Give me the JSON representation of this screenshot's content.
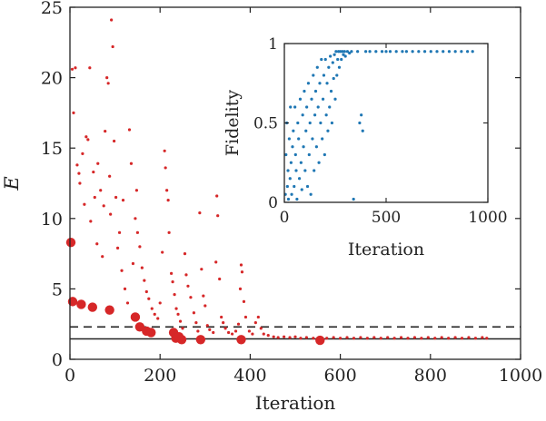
{
  "chart_data": [
    {
      "id": "main",
      "type": "scatter",
      "xlabel": "Iteration",
      "ylabel": "E",
      "xlim": [
        0,
        1000
      ],
      "ylim": [
        0,
        25
      ],
      "xticks": [
        0,
        200,
        400,
        600,
        800,
        1000
      ],
      "yticks": [
        0,
        5,
        10,
        15,
        20,
        25
      ],
      "grid": false,
      "colors": {
        "points": "#d62728",
        "frame": "#222222"
      },
      "reference_lines": [
        {
          "style": "dashed",
          "y": 2.3
        },
        {
          "style": "solid",
          "y": 1.45
        }
      ],
      "series": [
        {
          "marker": "small",
          "points": [
            [
              5,
              20.6
            ],
            [
              8,
              17.5
            ],
            [
              12,
              20.7
            ],
            [
              16,
              13.8
            ],
            [
              20,
              13.2
            ],
            [
              22,
              12.5
            ],
            [
              28,
              14.6
            ],
            [
              32,
              11.0
            ],
            [
              36,
              15.8
            ],
            [
              40,
              15.6
            ],
            [
              44,
              20.7
            ],
            [
              46,
              9.8
            ],
            [
              52,
              13.3
            ],
            [
              55,
              11.5
            ],
            [
              60,
              8.2
            ],
            [
              62,
              13.9
            ],
            [
              68,
              12.0
            ],
            [
              72,
              7.3
            ],
            [
              75,
              10.9
            ],
            [
              78,
              16.2
            ],
            [
              82,
              20.0
            ],
            [
              85,
              19.6
            ],
            [
              88,
              13.0
            ],
            [
              90,
              10.3
            ],
            [
              92,
              24.1
            ],
            [
              95,
              22.2
            ],
            [
              98,
              15.5
            ],
            [
              102,
              11.5
            ],
            [
              106,
              7.9
            ],
            [
              110,
              9.0
            ],
            [
              115,
              6.3
            ],
            [
              118,
              11.3
            ],
            [
              122,
              5.0
            ],
            [
              128,
              4.0
            ],
            [
              132,
              16.3
            ],
            [
              136,
              13.9
            ],
            [
              140,
              6.8
            ],
            [
              145,
              10.0
            ],
            [
              148,
              12.0
            ],
            [
              150,
              9.0
            ],
            [
              155,
              8.0
            ],
            [
              160,
              6.5
            ],
            [
              165,
              5.6
            ],
            [
              170,
              4.8
            ],
            [
              175,
              4.3
            ],
            [
              182,
              3.6
            ],
            [
              188,
              3.2
            ],
            [
              195,
              2.9
            ],
            [
              200,
              4.0
            ],
            [
              205,
              7.6
            ],
            [
              210,
              14.8
            ],
            [
              212,
              13.6
            ],
            [
              215,
              12.0
            ],
            [
              218,
              11.3
            ],
            [
              220,
              9.0
            ],
            [
              225,
              6.1
            ],
            [
              228,
              5.5
            ],
            [
              232,
              4.6
            ],
            [
              236,
              3.6
            ],
            [
              240,
              3.2
            ],
            [
              245,
              2.7
            ],
            [
              250,
              2.2
            ],
            [
              255,
              7.5
            ],
            [
              258,
              6.0
            ],
            [
              262,
              5.2
            ],
            [
              268,
              4.4
            ],
            [
              275,
              3.3
            ],
            [
              280,
              2.6
            ],
            [
              284,
              2.0
            ],
            [
              288,
              10.4
            ],
            [
              292,
              6.4
            ],
            [
              296,
              4.5
            ],
            [
              300,
              3.8
            ],
            [
              305,
              2.4
            ],
            [
              310,
              2.1
            ],
            [
              318,
              1.9
            ],
            [
              324,
              6.9
            ],
            [
              326,
              11.6
            ],
            [
              328,
              10.2
            ],
            [
              332,
              5.7
            ],
            [
              336,
              3.0
            ],
            [
              340,
              2.6
            ],
            [
              345,
              2.2
            ],
            [
              352,
              1.9
            ],
            [
              360,
              1.8
            ],
            [
              368,
              2.0
            ],
            [
              374,
              2.5
            ],
            [
              378,
              5.0
            ],
            [
              380,
              6.7
            ],
            [
              382,
              6.2
            ],
            [
              386,
              4.1
            ],
            [
              390,
              3.0
            ],
            [
              398,
              2.0
            ],
            [
              405,
              1.8
            ],
            [
              412,
              2.6
            ],
            [
              418,
              3.0
            ],
            [
              424,
              2.2
            ],
            [
              430,
              1.8
            ],
            [
              440,
              1.7
            ],
            [
              452,
              1.6
            ],
            [
              462,
              1.55
            ],
            [
              475,
              1.6
            ],
            [
              488,
              1.55
            ],
            [
              500,
              1.6
            ],
            [
              512,
              1.5
            ],
            [
              525,
              1.55
            ],
            [
              540,
              1.5
            ],
            [
              555,
              1.55
            ],
            [
              570,
              1.5
            ],
            [
              585,
              1.55
            ],
            [
              600,
              1.5
            ],
            [
              615,
              1.55
            ],
            [
              630,
              1.5
            ],
            [
              645,
              1.55
            ],
            [
              660,
              1.5
            ],
            [
              675,
              1.55
            ],
            [
              690,
              1.5
            ],
            [
              705,
              1.55
            ],
            [
              720,
              1.5
            ],
            [
              735,
              1.55
            ],
            [
              750,
              1.5
            ],
            [
              765,
              1.55
            ],
            [
              780,
              1.5
            ],
            [
              795,
              1.55
            ],
            [
              810,
              1.5
            ],
            [
              825,
              1.55
            ],
            [
              840,
              1.5
            ],
            [
              855,
              1.55
            ],
            [
              870,
              1.5
            ],
            [
              885,
              1.55
            ],
            [
              900,
              1.5
            ],
            [
              915,
              1.55
            ],
            [
              925,
              1.5
            ]
          ]
        },
        {
          "marker": "large",
          "points": [
            [
              2,
              8.3
            ],
            [
              6,
              4.1
            ],
            [
              25,
              3.9
            ],
            [
              50,
              3.7
            ],
            [
              88,
              3.5
            ],
            [
              145,
              3.0
            ],
            [
              155,
              2.3
            ],
            [
              170,
              2.0
            ],
            [
              180,
              1.9
            ],
            [
              230,
              1.9
            ],
            [
              235,
              1.5
            ],
            [
              242,
              1.6
            ],
            [
              248,
              1.4
            ],
            [
              290,
              1.4
            ],
            [
              380,
              1.4
            ],
            [
              555,
              1.35
            ]
          ]
        }
      ]
    },
    {
      "id": "inset",
      "type": "scatter",
      "xlabel": "Iteration",
      "ylabel": "Fidelity",
      "xlim": [
        0,
        1000
      ],
      "ylim": [
        0,
        1
      ],
      "xticks": [
        0,
        500,
        1000
      ],
      "yticks": [
        0,
        0.5,
        1
      ],
      "grid": false,
      "colors": {
        "points": "#1f77b4",
        "frame": "#222222"
      },
      "series": [
        {
          "marker": "small",
          "points": [
            [
              5,
              0.05
            ],
            [
              8,
              0.3
            ],
            [
              12,
              0.5
            ],
            [
              15,
              0.1
            ],
            [
              18,
              0.2
            ],
            [
              20,
              0.02
            ],
            [
              24,
              0.4
            ],
            [
              28,
              0.15
            ],
            [
              30,
              0.6
            ],
            [
              33,
              0.25
            ],
            [
              36,
              0.05
            ],
            [
              40,
              0.35
            ],
            [
              44,
              0.45
            ],
            [
              48,
              0.1
            ],
            [
              52,
              0.6
            ],
            [
              55,
              0.3
            ],
            [
              58,
              0.2
            ],
            [
              62,
              0.02
            ],
            [
              66,
              0.5
            ],
            [
              70,
              0.4
            ],
            [
              74,
              0.15
            ],
            [
              78,
              0.65
            ],
            [
              82,
              0.25
            ],
            [
              86,
              0.08
            ],
            [
              90,
              0.55
            ],
            [
              94,
              0.35
            ],
            [
              98,
              0.7
            ],
            [
              102,
              0.2
            ],
            [
              106,
              0.45
            ],
            [
              110,
              0.6
            ],
            [
              114,
              0.1
            ],
            [
              118,
              0.75
            ],
            [
              122,
              0.3
            ],
            [
              126,
              0.5
            ],
            [
              130,
              0.05
            ],
            [
              134,
              0.65
            ],
            [
              138,
              0.4
            ],
            [
              142,
              0.8
            ],
            [
              146,
              0.2
            ],
            [
              150,
              0.55
            ],
            [
              154,
              0.7
            ],
            [
              158,
              0.35
            ],
            [
              162,
              0.85
            ],
            [
              166,
              0.6
            ],
            [
              170,
              0.25
            ],
            [
              174,
              0.75
            ],
            [
              178,
              0.5
            ],
            [
              182,
              0.9
            ],
            [
              186,
              0.4
            ],
            [
              190,
              0.65
            ],
            [
              194,
              0.8
            ],
            [
              198,
              0.3
            ],
            [
              202,
              0.9
            ],
            [
              206,
              0.55
            ],
            [
              210,
              0.75
            ],
            [
              214,
              0.45
            ],
            [
              218,
              0.85
            ],
            [
              222,
              0.6
            ],
            [
              226,
              0.92
            ],
            [
              230,
              0.7
            ],
            [
              234,
              0.5
            ],
            [
              238,
              0.88
            ],
            [
              242,
              0.78
            ],
            [
              246,
              0.93
            ],
            [
              250,
              0.65
            ],
            [
              254,
              0.95
            ],
            [
              258,
              0.8
            ],
            [
              262,
              0.9
            ],
            [
              266,
              0.95
            ],
            [
              270,
              0.85
            ],
            [
              275,
              0.95
            ],
            [
              280,
              0.9
            ],
            [
              285,
              0.95
            ],
            [
              290,
              0.93
            ],
            [
              296,
              0.95
            ],
            [
              300,
              0.92
            ],
            [
              310,
              0.95
            ],
            [
              320,
              0.94
            ],
            [
              330,
              0.95
            ],
            [
              340,
              0.02
            ],
            [
              360,
              0.95
            ],
            [
              370,
              0.5
            ],
            [
              378,
              0.55
            ],
            [
              385,
              0.45
            ],
            [
              400,
              0.95
            ],
            [
              420,
              0.95
            ],
            [
              450,
              0.95
            ],
            [
              480,
              0.95
            ],
            [
              500,
              0.95
            ],
            [
              520,
              0.95
            ],
            [
              550,
              0.95
            ],
            [
              580,
              0.95
            ],
            [
              600,
              0.95
            ],
            [
              630,
              0.95
            ],
            [
              660,
              0.95
            ],
            [
              690,
              0.95
            ],
            [
              720,
              0.95
            ],
            [
              750,
              0.95
            ],
            [
              780,
              0.95
            ],
            [
              810,
              0.95
            ],
            [
              840,
              0.95
            ],
            [
              870,
              0.95
            ],
            [
              900,
              0.95
            ],
            [
              925,
              0.95
            ]
          ]
        }
      ]
    }
  ]
}
